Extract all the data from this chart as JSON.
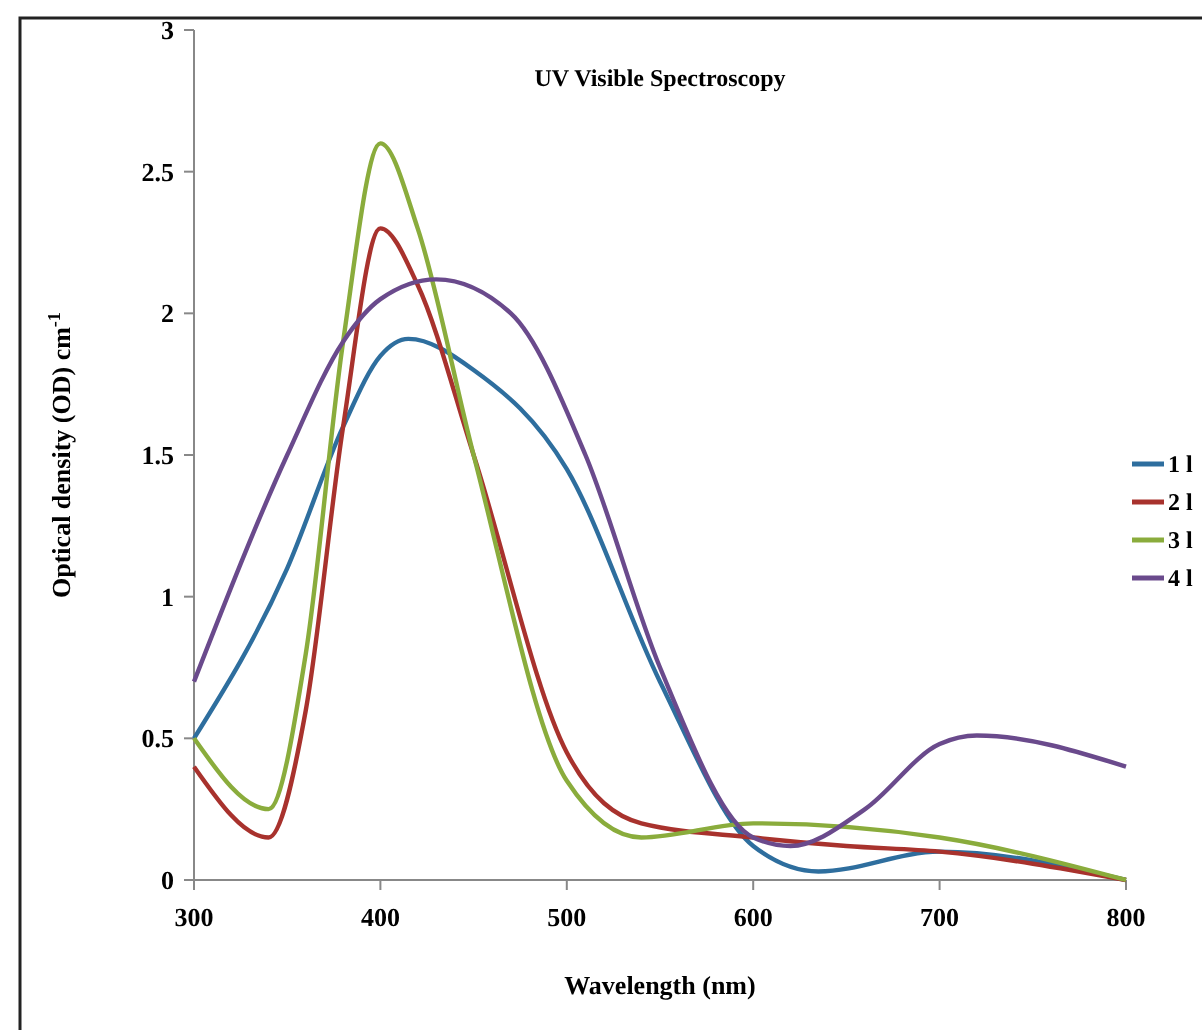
{
  "chart_data": {
    "type": "line",
    "title": "UV Visible Spectroscopy",
    "xlabel": "Wavelength (nm)",
    "ylabel": "Optical density (OD) cm$^{-1}$",
    "xlim": [
      300,
      800
    ],
    "xticks": [
      300,
      400,
      500,
      600,
      700,
      800
    ],
    "ylim": [
      0,
      3
    ],
    "yticks": [
      0,
      0.5,
      1,
      1.5,
      2,
      2.5,
      3
    ],
    "grid": false,
    "legend": "right",
    "marker": "none",
    "line_style": "solid",
    "series": [
      {
        "name": "1 l",
        "color": "#2e6e9e",
        "x": [
          300,
          350,
          380,
          400,
          415,
          450,
          500,
          550,
          600,
          635,
          700,
          800
        ],
        "values": [
          0.5,
          1.1,
          1.6,
          1.85,
          1.91,
          1.8,
          1.45,
          0.7,
          0.12,
          0.03,
          0.1,
          0
        ]
      },
      {
        "name": "2 l",
        "color": "#a8322d",
        "x": [
          300,
          340,
          360,
          380,
          400,
          420,
          450,
          500,
          540,
          600,
          650,
          700,
          800
        ],
        "values": [
          0.4,
          0.15,
          0.6,
          1.6,
          2.3,
          2.1,
          1.5,
          0.45,
          0.2,
          0.15,
          0.12,
          0.1,
          0
        ]
      },
      {
        "name": "3 l",
        "color": "#8aac3c",
        "x": [
          300,
          340,
          360,
          380,
          400,
          420,
          450,
          500,
          540,
          600,
          700,
          800
        ],
        "values": [
          0.5,
          0.25,
          0.8,
          1.9,
          2.6,
          2.3,
          1.5,
          0.35,
          0.15,
          0.2,
          0.15,
          0
        ]
      },
      {
        "name": "4 l",
        "color": "#6a4a8c",
        "x": [
          300,
          350,
          380,
          400,
          430,
          470,
          510,
          550,
          600,
          620,
          660,
          700,
          720,
          800
        ],
        "values": [
          0.7,
          1.5,
          1.9,
          2.05,
          2.12,
          2.0,
          1.5,
          0.75,
          0.15,
          0.12,
          0.25,
          0.48,
          0.51,
          0.4
        ]
      }
    ]
  }
}
